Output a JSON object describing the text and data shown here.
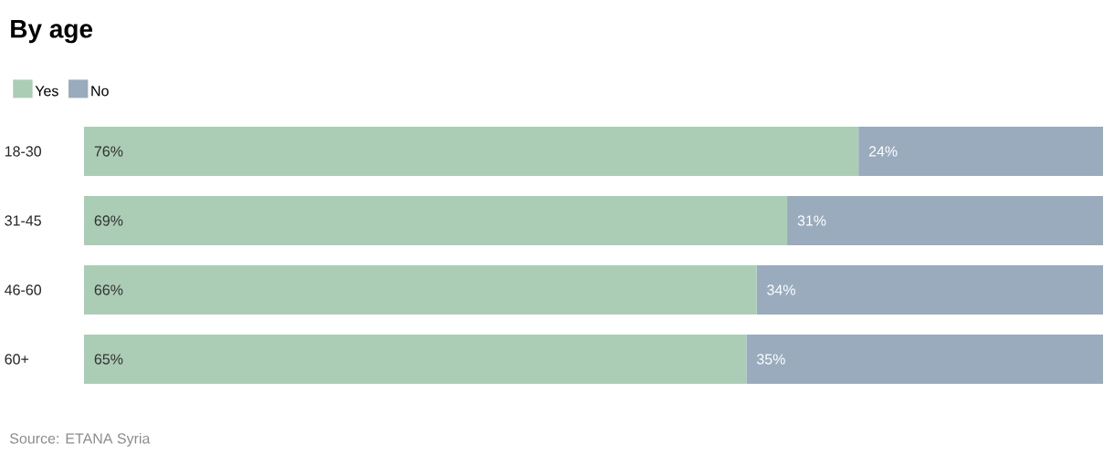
{
  "chart_data": {
    "type": "bar",
    "orientation": "horizontal",
    "stacked": true,
    "title": "By age",
    "categories": [
      "18-30",
      "31-45",
      "46-60",
      "60+"
    ],
    "series": [
      {
        "name": "Yes",
        "color": "#abcdb5",
        "values": [
          76,
          69,
          66,
          65
        ],
        "value_labels": [
          "76%",
          "69%",
          "66%",
          "65%"
        ]
      },
      {
        "name": "No",
        "color": "#99abbd",
        "values": [
          24,
          31,
          34,
          35
        ],
        "value_labels": [
          "24%",
          "31%",
          "34%",
          "35%"
        ]
      }
    ],
    "legend": "top left",
    "annotations": [
      "Source: ETANA Syria"
    ]
  }
}
